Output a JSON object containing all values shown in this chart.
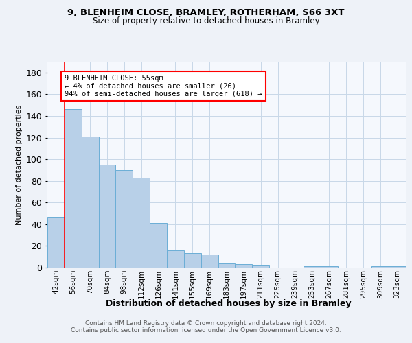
{
  "title_line1": "9, BLENHEIM CLOSE, BRAMLEY, ROTHERHAM, S66 3XT",
  "title_line2": "Size of property relative to detached houses in Bramley",
  "xlabel": "Distribution of detached houses by size in Bramley",
  "ylabel": "Number of detached properties",
  "bar_labels": [
    "42sqm",
    "56sqm",
    "70sqm",
    "84sqm",
    "98sqm",
    "112sqm",
    "126sqm",
    "141sqm",
    "155sqm",
    "169sqm",
    "183sqm",
    "197sqm",
    "211sqm",
    "225sqm",
    "239sqm",
    "253sqm",
    "267sqm",
    "281sqm",
    "295sqm",
    "309sqm",
    "323sqm"
  ],
  "bar_values": [
    46,
    146,
    121,
    95,
    90,
    83,
    41,
    16,
    13,
    12,
    4,
    3,
    2,
    0,
    0,
    1,
    1,
    0,
    0,
    1,
    1
  ],
  "bar_color": "#b8d0e8",
  "bar_edge_color": "#6baed6",
  "annotation_text": "9 BLENHEIM CLOSE: 55sqm\n← 4% of detached houses are smaller (26)\n94% of semi-detached houses are larger (618) →",
  "footer_line1": "Contains HM Land Registry data © Crown copyright and database right 2024.",
  "footer_line2": "Contains public sector information licensed under the Open Government Licence v3.0.",
  "ylim": [
    0,
    190
  ],
  "yticks": [
    0,
    20,
    40,
    60,
    80,
    100,
    120,
    140,
    160,
    180
  ],
  "bg_color": "#eef2f8",
  "plot_bg_color": "#f5f8fd",
  "grid_color": "#c8d8e8"
}
